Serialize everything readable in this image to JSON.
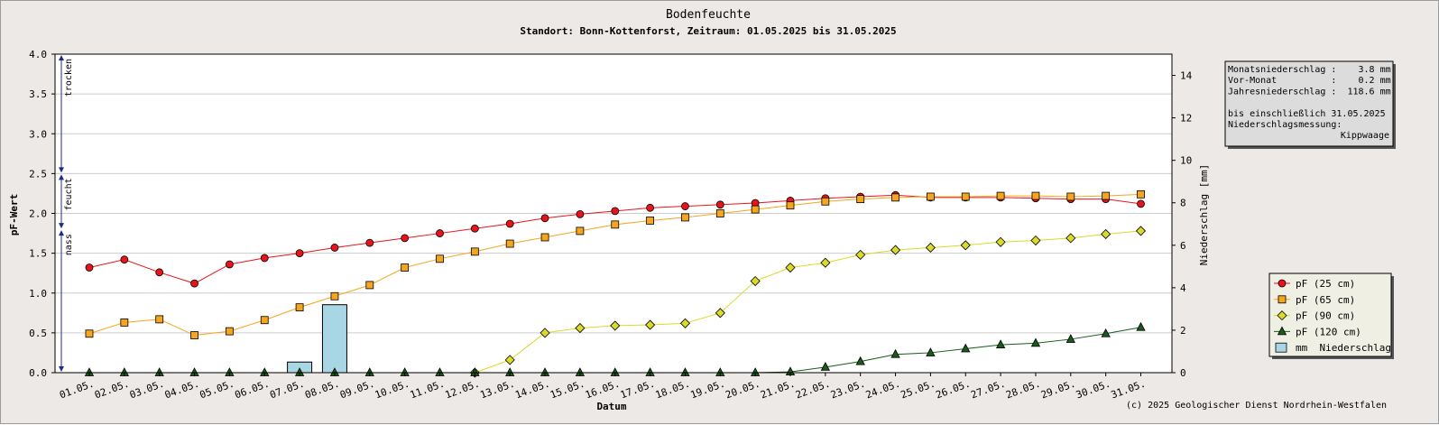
{
  "title": "Bodenfeuchte",
  "subtitle": "Standort: Bonn-Kottenforst, Zeitraum: 01.05.2025 bis 31.05.2025",
  "copyright": "(c) 2025 Geologischer Dienst Nordrhein-Westfalen",
  "info_box": {
    "lines": [
      "Monatsniederschlag :    3.8 mm",
      "Vor-Monat          :    0.2 mm",
      "Jahresniederschlag :  118.6 mm",
      "",
      "bis einschließlich 31.05.2025",
      "Niederschlagsmessung:"
    ],
    "last_line": "Kippwaage"
  },
  "moisture_bands": [
    {
      "label": "trocken",
      "from": 2.5,
      "to": 4.0
    },
    {
      "label": "feucht",
      "from": 1.8,
      "to": 2.5
    },
    {
      "label": "nass",
      "from": 0.0,
      "to": 1.8
    }
  ],
  "colors": {
    "pf25": "#e8141c",
    "pf65": "#f5a51e",
    "pf90": "#dada2a",
    "pf120": "#1a5a1a",
    "rain": "#a9d6e4",
    "band_arrows": "#1c2c8c"
  },
  "chart_data": {
    "type": "line",
    "title": "Bodenfeuchte",
    "subtitle": "Standort: Bonn-Kottenforst, Zeitraum: 01.05.2025 bis 31.05.2025",
    "xlabel": "Datum",
    "ylabel": "pF-Wert",
    "y2label": "Niederschlag [mm]",
    "ylim": [
      0,
      4.0
    ],
    "y2lim": [
      0,
      15
    ],
    "yticks": [
      "0.0",
      "0.5",
      "1.0",
      "1.5",
      "2.0",
      "2.5",
      "3.0",
      "3.5",
      "4.0"
    ],
    "y2ticks": [
      "0",
      "2",
      "4",
      "6",
      "8",
      "10",
      "12",
      "14"
    ],
    "grid": true,
    "legend_position": "right",
    "categories": [
      "01.05.",
      "02.05.",
      "03.05.",
      "04.05.",
      "05.05.",
      "06.05.",
      "07.05.",
      "08.05.",
      "09.05.",
      "10.05.",
      "11.05.",
      "12.05.",
      "13.05.",
      "14.05.",
      "15.05.",
      "16.05.",
      "17.05.",
      "18.05.",
      "19.05.",
      "20.05.",
      "21.05.",
      "22.05.",
      "23.05.",
      "24.05.",
      "25.05.",
      "26.05.",
      "27.05.",
      "28.05.",
      "29.05.",
      "30.05.",
      "31.05."
    ],
    "series": [
      {
        "name": "pF (25 cm)",
        "marker": "circle",
        "values": [
          1.32,
          1.42,
          1.26,
          1.12,
          1.36,
          1.44,
          1.5,
          1.57,
          1.63,
          1.69,
          1.75,
          1.81,
          1.87,
          1.94,
          1.99,
          2.03,
          2.07,
          2.09,
          2.11,
          2.13,
          2.16,
          2.19,
          2.21,
          2.23,
          2.2,
          2.2,
          2.2,
          2.19,
          2.18,
          2.18,
          2.12
        ]
      },
      {
        "name": "pF (65 cm)",
        "marker": "square",
        "values": [
          0.49,
          0.63,
          0.67,
          0.47,
          0.52,
          0.66,
          0.82,
          0.96,
          1.1,
          1.32,
          1.43,
          1.52,
          1.62,
          1.7,
          1.78,
          1.86,
          1.91,
          1.95,
          2.0,
          2.05,
          2.1,
          2.15,
          2.18,
          2.2,
          2.21,
          2.21,
          2.22,
          2.22,
          2.21,
          2.22,
          2.24
        ]
      },
      {
        "name": "pF (90 cm)",
        "marker": "diamond",
        "values": [
          null,
          null,
          null,
          null,
          null,
          null,
          null,
          null,
          null,
          null,
          null,
          0.0,
          0.16,
          0.5,
          0.56,
          0.59,
          0.6,
          0.62,
          0.75,
          1.15,
          1.32,
          1.38,
          1.48,
          1.54,
          1.57,
          1.6,
          1.64,
          1.66,
          1.69,
          1.74,
          1.78
        ]
      },
      {
        "name": "pF (120 cm)",
        "marker": "triangle",
        "values": [
          0.0,
          0.0,
          0.0,
          0.0,
          0.0,
          0.0,
          0.0,
          0.0,
          0.0,
          0.0,
          0.0,
          0.0,
          0.0,
          0.0,
          0.0,
          0.0,
          0.0,
          0.0,
          0.0,
          0.0,
          0.01,
          0.07,
          0.14,
          0.23,
          0.25,
          0.3,
          0.35,
          0.37,
          0.42,
          0.49,
          0.57
        ]
      },
      {
        "name": "mm  Niederschlag",
        "type": "bar",
        "axis": "y2",
        "values": [
          0,
          0,
          0,
          0,
          0,
          0,
          0.5,
          3.2,
          0,
          0,
          0,
          0,
          0,
          0,
          0,
          0,
          0,
          0,
          0,
          0,
          0,
          0,
          0,
          0,
          0,
          0,
          0,
          0,
          0,
          0,
          0
        ]
      }
    ]
  }
}
